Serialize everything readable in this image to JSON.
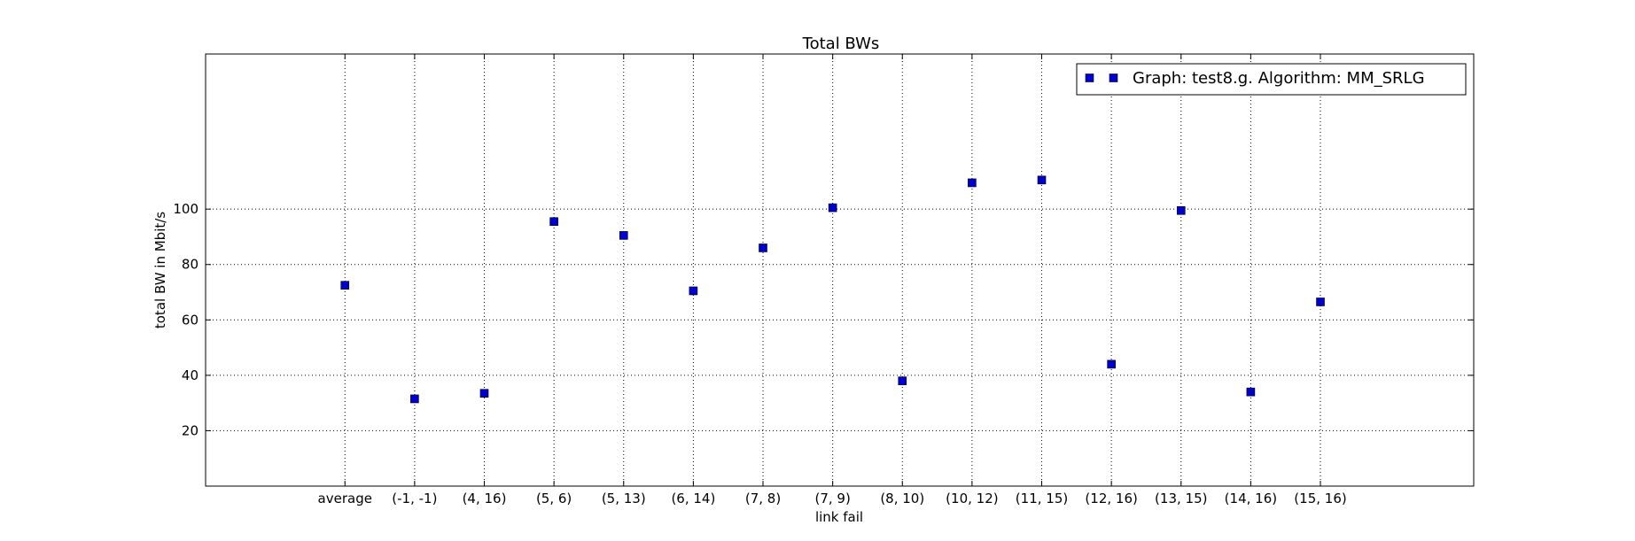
{
  "chart_data": {
    "type": "scatter",
    "title": "Total BWs",
    "xlabel": "link fail",
    "ylabel": "total BW in Mbit/s",
    "categories": [
      "average",
      "(-1, -1)",
      "(4, 16)",
      "(5, 6)",
      "(5, 13)",
      "(6, 14)",
      "(7, 8)",
      "(7, 9)",
      "(8, 10)",
      "(10, 12)",
      "(11, 15)",
      "(12, 16)",
      "(13, 15)",
      "(14, 16)",
      "(15, 16)"
    ],
    "series": [
      {
        "name": "Graph: test8.g. Algorithm: MM_SRLG",
        "values": [
          72.5,
          31.5,
          33.5,
          95.5,
          90.5,
          70.5,
          86,
          100.5,
          38,
          109.5,
          110.5,
          44,
          99.5,
          34,
          66.5
        ],
        "color": "#0000cc",
        "marker": "square"
      }
    ],
    "yticks": [
      20,
      40,
      60,
      80,
      100
    ],
    "ylim": [
      0,
      156
    ],
    "xlim": [
      -2,
      16.2
    ],
    "grid": true,
    "legend_position": "top-right"
  }
}
